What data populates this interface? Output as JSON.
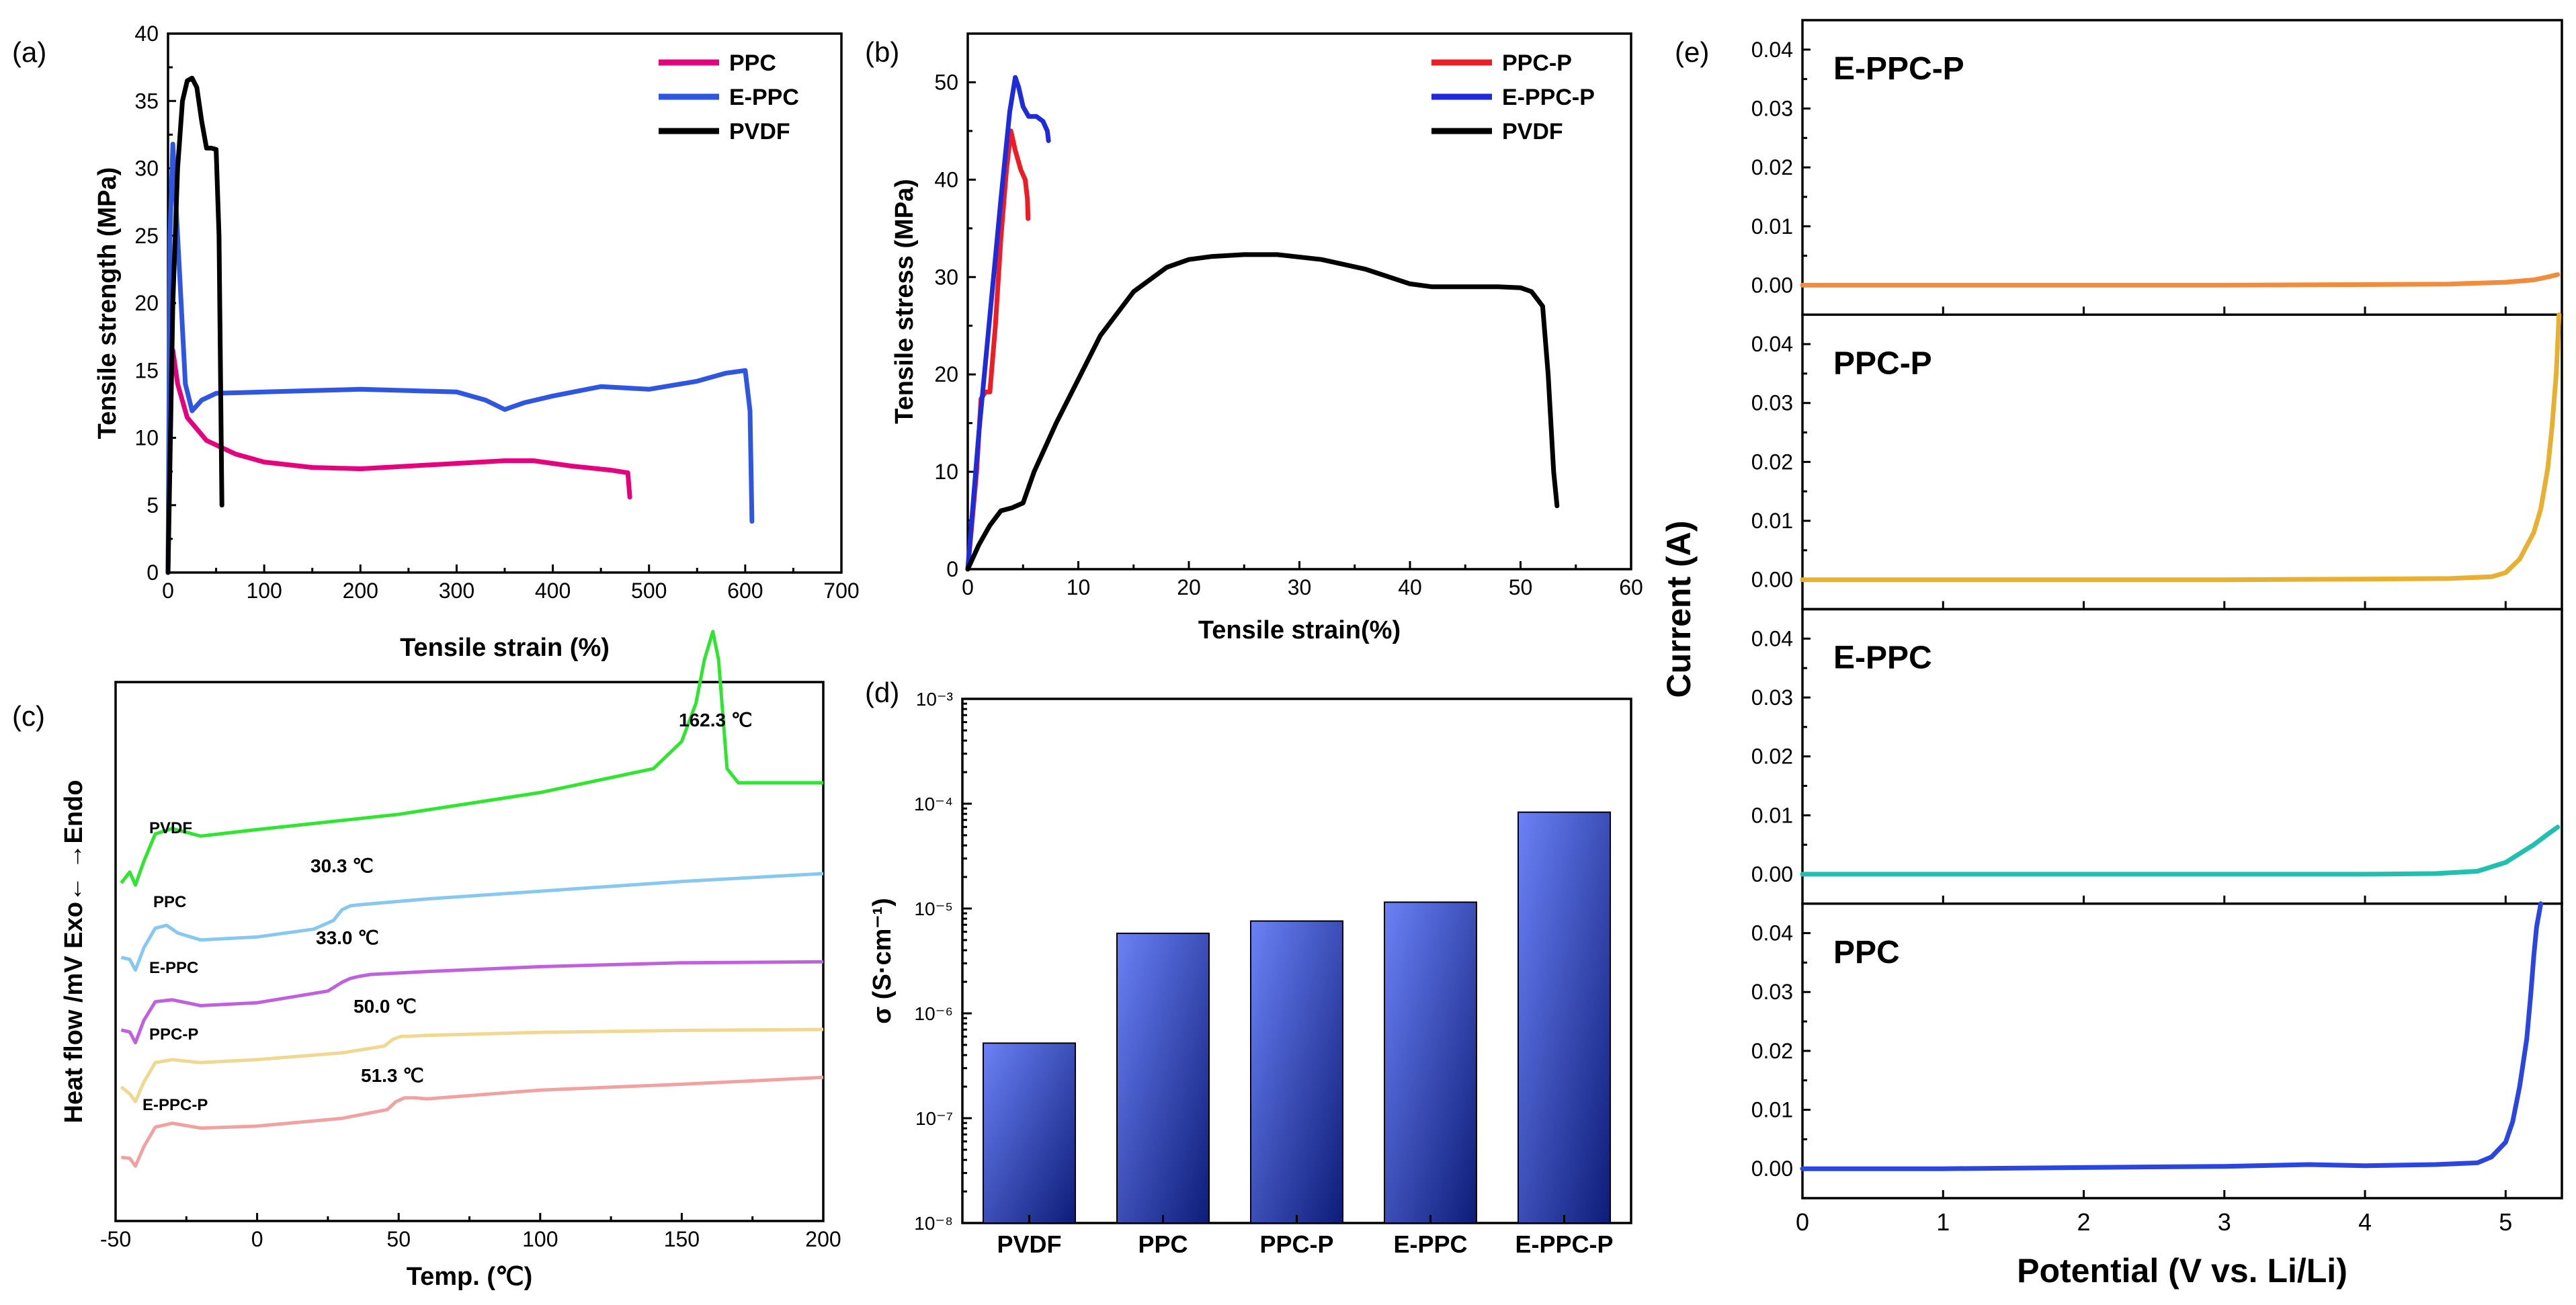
{
  "panels": {
    "a": {
      "label": "(a)"
    },
    "b": {
      "label": "(b)"
    },
    "c": {
      "label": "(c)"
    },
    "d": {
      "label": "(d)"
    },
    "e": {
      "label": "(e)"
    }
  },
  "chart_data": [
    {
      "id": "a",
      "type": "line",
      "xlabel": "Tensile strain (%)",
      "ylabel": "Tensile strength (MPa)",
      "xlim": [
        0,
        700
      ],
      "ylim": [
        0,
        40
      ],
      "xticks": [
        "0",
        "100",
        "200",
        "300",
        "400",
        "500",
        "600",
        "700"
      ],
      "yticks": [
        "0",
        "5",
        "10",
        "15",
        "20",
        "25",
        "30",
        "35",
        "40"
      ],
      "legend_position": "top-right",
      "series": [
        {
          "name": "PPC",
          "color": "#e6007e",
          "x": [
            0,
            2,
            5,
            10,
            20,
            40,
            70,
            100,
            150,
            200,
            250,
            300,
            350,
            380,
            420,
            460,
            478,
            480
          ],
          "y": [
            0,
            14,
            16.5,
            14,
            11.5,
            9.8,
            8.8,
            8.2,
            7.8,
            7.7,
            7.9,
            8.1,
            8.3,
            8.3,
            7.9,
            7.6,
            7.4,
            5.6
          ]
        },
        {
          "name": "E-PPC",
          "color": "#2e56e0",
          "x": [
            0,
            2,
            5,
            10,
            18,
            25,
            35,
            50,
            100,
            150,
            200,
            250,
            300,
            330,
            350,
            370,
            400,
            450,
            500,
            550,
            580,
            600,
            605,
            607
          ],
          "y": [
            0,
            25,
            31.8,
            25,
            14,
            12,
            12.8,
            13.3,
            13.4,
            13.5,
            13.6,
            13.5,
            13.4,
            12.8,
            12.1,
            12.6,
            13.1,
            13.8,
            13.6,
            14.2,
            14.8,
            15,
            12,
            3.8
          ]
        },
        {
          "name": "PVDF",
          "color": "#000000",
          "x": [
            0,
            5,
            10,
            15,
            20,
            25,
            30,
            35,
            40,
            45,
            50,
            53,
            55,
            56
          ],
          "y": [
            0,
            20,
            30,
            35,
            36.5,
            36.7,
            36,
            33.5,
            31.5,
            31.5,
            31.4,
            25,
            12,
            5
          ]
        }
      ]
    },
    {
      "id": "b",
      "type": "line",
      "xlabel": "Tensile strain(%)",
      "ylabel": "Tensile stress (MPa)",
      "xlim": [
        0,
        60
      ],
      "ylim": [
        0,
        55
      ],
      "xticks": [
        "0",
        "10",
        "20",
        "30",
        "40",
        "50",
        "60"
      ],
      "yticks": [
        "0",
        "10",
        "20",
        "30",
        "40",
        "50"
      ],
      "legend_position": "top-right",
      "series": [
        {
          "name": "PPC-P",
          "color": "#ee1c25",
          "x": [
            0,
            0.8,
            1.2,
            1.6,
            2.0,
            2.5,
            3.0,
            3.5,
            3.9,
            4.3,
            4.8,
            5.2,
            5.4,
            5.45
          ],
          "y": [
            0,
            10,
            17.5,
            18.2,
            18.2,
            25,
            34,
            41,
            45,
            43,
            41,
            40,
            38,
            36
          ]
        },
        {
          "name": "E-PPC-P",
          "color": "#1f2bd8",
          "x": [
            0,
            1.0,
            2.0,
            3.0,
            3.8,
            4.3,
            4.6,
            5.0,
            5.5,
            6.2,
            6.8,
            7.2,
            7.3
          ],
          "y": [
            0,
            14,
            26,
            38,
            47,
            50.5,
            49.5,
            47.5,
            46.5,
            46.5,
            46,
            45,
            44
          ]
        },
        {
          "name": "PVDF",
          "color": "#000000",
          "x": [
            0,
            1,
            2,
            3,
            4,
            5,
            6,
            8,
            10,
            12,
            15,
            18,
            20,
            22,
            25,
            28,
            32,
            36,
            40,
            42,
            45,
            48,
            50,
            51,
            52,
            52.5,
            53,
            53.3
          ],
          "y": [
            0,
            2.5,
            4.5,
            6,
            6.3,
            6.8,
            10,
            15,
            19.5,
            24,
            28.5,
            31,
            31.8,
            32.1,
            32.3,
            32.3,
            31.8,
            30.8,
            29.3,
            29,
            29,
            29,
            28.9,
            28.5,
            27,
            20,
            10,
            6.5
          ]
        }
      ]
    },
    {
      "id": "c",
      "type": "line",
      "xlabel": "Temp. (℃)",
      "ylabel": "Heat flow /mV Exo← →Endo",
      "xlim": [
        -50,
        200
      ],
      "xticks": [
        "-50",
        "0",
        "50",
        "100",
        "150",
        "200"
      ],
      "y_tick_labels": false,
      "series": [
        {
          "name": "PVDF",
          "color": "#2ee62e",
          "x": [
            -48,
            -45,
            -43,
            -40,
            -36,
            -30,
            -20,
            0,
            50,
            100,
            140,
            150,
            155,
            158,
            161,
            163,
            166,
            170,
            180,
            200
          ],
          "y": [
            0.5,
            1.5,
            0.3,
            2.5,
            5.0,
            5.5,
            4.8,
            5.4,
            6.8,
            8.8,
            11,
            13.5,
            17,
            21,
            23.6,
            21,
            11,
            9.7,
            9.7,
            9.7
          ],
          "offset": 0
        },
        {
          "name": "PPC",
          "color": "#86c8f0",
          "x": [
            -48,
            -45,
            -43,
            -40,
            -36,
            -32,
            -28,
            -20,
            0,
            20,
            27,
            30,
            33,
            36,
            40,
            60,
            100,
            150,
            200
          ],
          "y": [
            0.5,
            0.3,
            -0.8,
            1.5,
            3.5,
            3.8,
            3.0,
            2.3,
            2.6,
            3.4,
            4.3,
            5.4,
            5.8,
            5.9,
            6.0,
            6.5,
            7.3,
            8.3,
            9.1
          ],
          "offset": 0
        },
        {
          "name": "E-PPC",
          "color": "#c060e0",
          "x": [
            -48,
            -45,
            -43,
            -40,
            -36,
            -30,
            -20,
            0,
            25,
            30,
            33,
            36,
            40,
            60,
            100,
            150,
            200
          ],
          "y": [
            0.5,
            0.3,
            -0.8,
            1.5,
            3.4,
            3.6,
            3.0,
            3.3,
            4.5,
            5.4,
            5.8,
            6.0,
            6.2,
            6.5,
            7.0,
            7.4,
            7.5
          ],
          "offset": 0
        },
        {
          "name": "PPC-P",
          "color": "#f0d890",
          "x": [
            -48,
            -45,
            -43,
            -40,
            -36,
            -30,
            -20,
            0,
            30,
            45,
            48,
            51,
            54,
            60,
            100,
            150,
            200
          ],
          "y": [
            1.0,
            0.3,
            -0.5,
            1.5,
            3.5,
            3.8,
            3.5,
            3.8,
            4.5,
            5.2,
            5.9,
            6.2,
            6.2,
            6.3,
            6.6,
            6.8,
            6.9
          ],
          "offset": 0
        },
        {
          "name": "E-PPC-P",
          "color": "#f2a1a1",
          "x": [
            -48,
            -45,
            -43,
            -40,
            -36,
            -30,
            -20,
            0,
            30,
            46,
            49,
            52,
            56,
            60,
            100,
            150,
            200
          ],
          "y": [
            0.4,
            0.3,
            -0.5,
            1.5,
            3.5,
            3.9,
            3.4,
            3.6,
            4.4,
            5.3,
            6.1,
            6.5,
            6.5,
            6.4,
            7.3,
            7.9,
            8.6
          ],
          "offset": 0
        }
      ],
      "annotations": [
        {
          "text": "162.3 ℃",
          "target": "PVDF"
        },
        {
          "text": "30.3 ℃",
          "target": "PPC"
        },
        {
          "text": "33.0 ℃",
          "target": "E-PPC"
        },
        {
          "text": "50.0 ℃",
          "target": "PPC-P"
        },
        {
          "text": "51.3 ℃",
          "target": "E-PPC-P"
        }
      ]
    },
    {
      "id": "d",
      "type": "bar",
      "ylabel": "σ (S·cm⁻¹)",
      "yscale": "log",
      "ylim": [
        1e-08,
        0.001
      ],
      "yticks": [
        "10⁻⁸",
        "10⁻⁷",
        "10⁻⁶",
        "10⁻⁵",
        "10⁻⁴",
        "10⁻³"
      ],
      "categories": [
        "PVDF",
        "PPC",
        "PPC-P",
        "E-PPC",
        "E-PPC-P"
      ],
      "values": [
        5.2e-07,
        5.8e-06,
        7.6e-06,
        1.15e-05,
        8.3e-05
      ],
      "bar_color_light": "#6b82f7",
      "bar_color_dark": "#0d1c78"
    },
    {
      "id": "e",
      "type": "line",
      "xlabel": "Potential (V vs. Li/Li)",
      "ylabel": "Current (A)",
      "xlim": [
        0,
        5.4
      ],
      "ylim": [
        -0.005,
        0.045
      ],
      "xticks": [
        "0",
        "1",
        "2",
        "3",
        "4",
        "5"
      ],
      "yticks": [
        "0.00",
        "0.01",
        "0.02",
        "0.03",
        "0.04"
      ],
      "series": [
        {
          "name": "E-PPC-P",
          "color": "#f08c3c",
          "x": [
            0,
            1,
            2,
            3,
            4,
            4.6,
            5.0,
            5.2,
            5.3,
            5.37
          ],
          "y": [
            0,
            0,
            0,
            0,
            0.0001,
            0.0002,
            0.0005,
            0.0009,
            0.0014,
            0.0018
          ]
        },
        {
          "name": "PPC-P",
          "color": "#e8b030",
          "x": [
            0,
            1,
            2,
            3,
            4,
            4.6,
            4.9,
            5.0,
            5.1,
            5.2,
            5.25,
            5.3,
            5.33,
            5.36,
            5.38
          ],
          "y": [
            0,
            0,
            0,
            0,
            0.0001,
            0.0002,
            0.0005,
            0.0012,
            0.0035,
            0.008,
            0.012,
            0.019,
            0.026,
            0.035,
            0.045
          ]
        },
        {
          "name": "E-PPC",
          "color": "#20c0b0",
          "x": [
            0,
            1,
            2,
            3,
            4,
            4.5,
            4.8,
            5.0,
            5.1,
            5.2,
            5.3,
            5.37
          ],
          "y": [
            0,
            0,
            0,
            0,
            0,
            0.0001,
            0.0005,
            0.002,
            0.0035,
            0.005,
            0.0068,
            0.008
          ]
        },
        {
          "name": "PPC",
          "color": "#2a45e0",
          "x": [
            0,
            1,
            2,
            3,
            3.6,
            4,
            4.5,
            4.8,
            4.9,
            5.0,
            5.05,
            5.1,
            5.15,
            5.18,
            5.2,
            5.22,
            5.25
          ],
          "y": [
            0,
            0,
            0.0002,
            0.0004,
            0.0007,
            0.0005,
            0.0007,
            0.001,
            0.002,
            0.0045,
            0.008,
            0.014,
            0.022,
            0.03,
            0.036,
            0.041,
            0.045
          ]
        }
      ]
    }
  ]
}
